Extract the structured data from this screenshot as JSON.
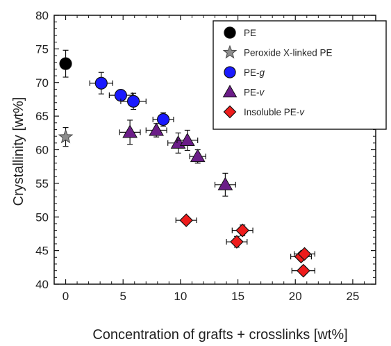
{
  "chart_data": {
    "type": "scatter",
    "xlabel": "Concentration of grafts + crosslinks [wt%]",
    "ylabel": "Crystallinity [wt%]",
    "xlim": [
      -1,
      27
    ],
    "ylim": [
      40,
      80
    ],
    "xticks": [
      "0",
      "5",
      "10",
      "15",
      "20",
      "25"
    ],
    "yticks": [
      "40",
      "45",
      "50",
      "55",
      "60",
      "65",
      "70",
      "75",
      "80"
    ],
    "grid": false,
    "legend_position": "top-right",
    "series": [
      {
        "name": "PE",
        "marker": "circle",
        "color": "#000000",
        "points": [
          {
            "x": 0,
            "y": 72.8,
            "xerr": 0,
            "yerr": 2.0
          }
        ]
      },
      {
        "name": "Peroxide X-linked PE",
        "marker": "star",
        "color": "#8c8c8c",
        "points": [
          {
            "x": 0,
            "y": 61.9,
            "xerr": 0,
            "yerr": 1.4
          }
        ]
      },
      {
        "name": "PE-g",
        "name_italic_suffix": "g",
        "marker": "circle",
        "color": "#1a1aff",
        "points": [
          {
            "x": 3.1,
            "y": 69.9,
            "xerr": 1.0,
            "yerr": 1.6
          },
          {
            "x": 4.8,
            "y": 68.1,
            "xerr": 1.0,
            "yerr": 0.8
          },
          {
            "x": 5.9,
            "y": 67.2,
            "xerr": 1.1,
            "yerr": 1.2
          },
          {
            "x": 8.5,
            "y": 64.5,
            "xerr": 0.9,
            "yerr": 1.0
          }
        ]
      },
      {
        "name": "PE-v",
        "name_italic_suffix": "v",
        "marker": "triangle",
        "color": "#6b1d88",
        "points": [
          {
            "x": 5.6,
            "y": 62.6,
            "xerr": 0.9,
            "yerr": 1.8
          },
          {
            "x": 7.9,
            "y": 62.9,
            "xerr": 0.9,
            "yerr": 1.0
          },
          {
            "x": 9.8,
            "y": 61.0,
            "xerr": 0.9,
            "yerr": 1.5
          },
          {
            "x": 10.6,
            "y": 61.4,
            "xerr": 0.9,
            "yerr": 1.5
          },
          {
            "x": 11.5,
            "y": 59.0,
            "xerr": 0.7,
            "yerr": 1.0
          },
          {
            "x": 13.9,
            "y": 54.8,
            "xerr": 0.9,
            "yerr": 1.7
          }
        ]
      },
      {
        "name": "Insoluble PE-v",
        "name_italic_suffix": "v",
        "marker": "diamond",
        "color": "#ee1c1c",
        "points": [
          {
            "x": 10.5,
            "y": 49.5,
            "xerr": 0.9,
            "yerr": 0.5
          },
          {
            "x": 15.4,
            "y": 48.0,
            "xerr": 0.9,
            "yerr": 0.8
          },
          {
            "x": 14.9,
            "y": 46.3,
            "xerr": 0.9,
            "yerr": 0.8
          },
          {
            "x": 20.5,
            "y": 44.1,
            "xerr": 0.9,
            "yerr": 0.6
          },
          {
            "x": 20.8,
            "y": 44.5,
            "xerr": 0.9,
            "yerr": 0.5
          },
          {
            "x": 20.7,
            "y": 42.0,
            "xerr": 1.0,
            "yerr": 0.6
          }
        ]
      }
    ]
  }
}
